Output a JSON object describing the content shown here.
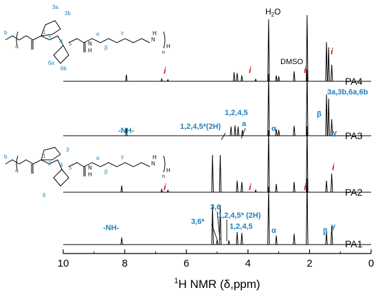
{
  "chart_data": {
    "type": "line",
    "xlabel_prefix": "1",
    "xlabel": "H NMR (δ,ppm)",
    "xlim": [
      10,
      0
    ],
    "xticks": [
      "10",
      "8",
      "6",
      "4",
      "2",
      "0"
    ],
    "grid": false,
    "series": [
      {
        "name": "PA4",
        "peaks": [
          {
            "x": 7.95,
            "h": 0.16
          },
          {
            "x": 6.8,
            "h": 0.06
          },
          {
            "x": 6.6,
            "h": 0.04
          },
          {
            "x": 4.45,
            "h": 0.22
          },
          {
            "x": 4.35,
            "h": 0.2
          },
          {
            "x": 4.2,
            "h": 0.14
          },
          {
            "x": 3.75,
            "h": 0.05
          },
          {
            "x": 3.33,
            "h": 1.5
          },
          {
            "x": 3.08,
            "h": 0.14
          },
          {
            "x": 3.0,
            "h": 0.12
          },
          {
            "x": 2.5,
            "h": 0.24
          },
          {
            "x": 2.08,
            "h": 1.6
          },
          {
            "x": 1.45,
            "h": 0.95
          },
          {
            "x": 1.38,
            "h": 0.82
          },
          {
            "x": 1.28,
            "h": 0.4
          }
        ]
      },
      {
        "name": "PA3",
        "peaks": [
          {
            "x": 7.95,
            "h": 0.18
          },
          {
            "x": 4.55,
            "h": 0.22
          },
          {
            "x": 4.42,
            "h": 0.25
          },
          {
            "x": 4.32,
            "h": 0.22
          },
          {
            "x": 4.18,
            "h": 0.14
          },
          {
            "x": 3.33,
            "h": 1.5
          },
          {
            "x": 3.08,
            "h": 0.16
          },
          {
            "x": 3.0,
            "h": 0.14
          },
          {
            "x": 2.5,
            "h": 0.24
          },
          {
            "x": 2.08,
            "h": 1.6
          },
          {
            "x": 1.45,
            "h": 1.0
          },
          {
            "x": 1.38,
            "h": 0.9
          },
          {
            "x": 1.28,
            "h": 0.4
          }
        ]
      },
      {
        "name": "PA2",
        "peaks": [
          {
            "x": 8.1,
            "h": 0.16
          },
          {
            "x": 6.8,
            "h": 0.07
          },
          {
            "x": 6.6,
            "h": 0.05
          },
          {
            "x": 5.15,
            "h": 0.9
          },
          {
            "x": 4.9,
            "h": 0.9
          },
          {
            "x": 4.35,
            "h": 0.28
          },
          {
            "x": 4.2,
            "h": 0.25
          },
          {
            "x": 3.75,
            "h": 0.05
          },
          {
            "x": 3.33,
            "h": 1.5
          },
          {
            "x": 3.08,
            "h": 0.2
          },
          {
            "x": 2.5,
            "h": 0.25
          },
          {
            "x": 2.08,
            "h": 1.6
          },
          {
            "x": 1.45,
            "h": 0.28
          },
          {
            "x": 1.28,
            "h": 0.45
          }
        ]
      },
      {
        "name": "PA1",
        "peaks": [
          {
            "x": 8.1,
            "h": 0.17
          },
          {
            "x": 5.15,
            "h": 0.95
          },
          {
            "x": 5.0,
            "h": 0.12
          },
          {
            "x": 4.9,
            "h": 0.95
          },
          {
            "x": 4.62,
            "h": 0.1
          },
          {
            "x": 4.35,
            "h": 0.3
          },
          {
            "x": 4.2,
            "h": 0.28
          },
          {
            "x": 3.33,
            "h": 1.4
          },
          {
            "x": 3.08,
            "h": 0.22
          },
          {
            "x": 2.5,
            "h": 0.26
          },
          {
            "x": 2.08,
            "h": 1.6
          },
          {
            "x": 1.45,
            "h": 0.3
          },
          {
            "x": 1.28,
            "h": 0.45
          }
        ]
      }
    ],
    "annotations": {
      "h2o": "H",
      "h2o_sub": "2",
      "h2o_tail": "O",
      "dmso": "DMSO",
      "impurity_mark": "i",
      "pa4_methyls": "3a,3b,6a,6b",
      "pa3_nh": "-NH-",
      "pa3_backbone": "1,2,4,5*(2H)",
      "pa3_backbone2": "1,2,4,5",
      "pa3_a": "a",
      "pa3_alpha": "α",
      "pa3_beta": "β",
      "pa3_gamma": "γ",
      "pa1_nh": "-NH-",
      "pa1_36": "3,6",
      "pa1_36star": "3,6*",
      "pa1_backbone_2h": "1,2,4,5* (2H)",
      "pa1_backbone": "1,2,4,5",
      "pa1_alpha": "α",
      "pa1_beta": "β",
      "pa1_gamma": "γ"
    },
    "structures": {
      "top": {
        "labels": [
          "3a",
          "3b",
          "1",
          "2",
          "4",
          "5",
          "6a",
          "6b",
          "b",
          "a",
          "α",
          "β",
          "γ"
        ],
        "bracket_sub_h": "H",
        "n": "n",
        "amide": "N",
        "amide_h": "H",
        "amine": "N",
        "amine_h": "H",
        "o": "O"
      },
      "bottom": {
        "labels": [
          "3",
          "1",
          "2",
          "4",
          "5",
          "6",
          "b",
          "a",
          "α",
          "β",
          "γ"
        ],
        "bracket_sub_h": "H",
        "n": "n",
        "amide": "N",
        "amide_h": "H",
        "amine": "N",
        "amine_h": "H",
        "o": "O"
      }
    }
  }
}
